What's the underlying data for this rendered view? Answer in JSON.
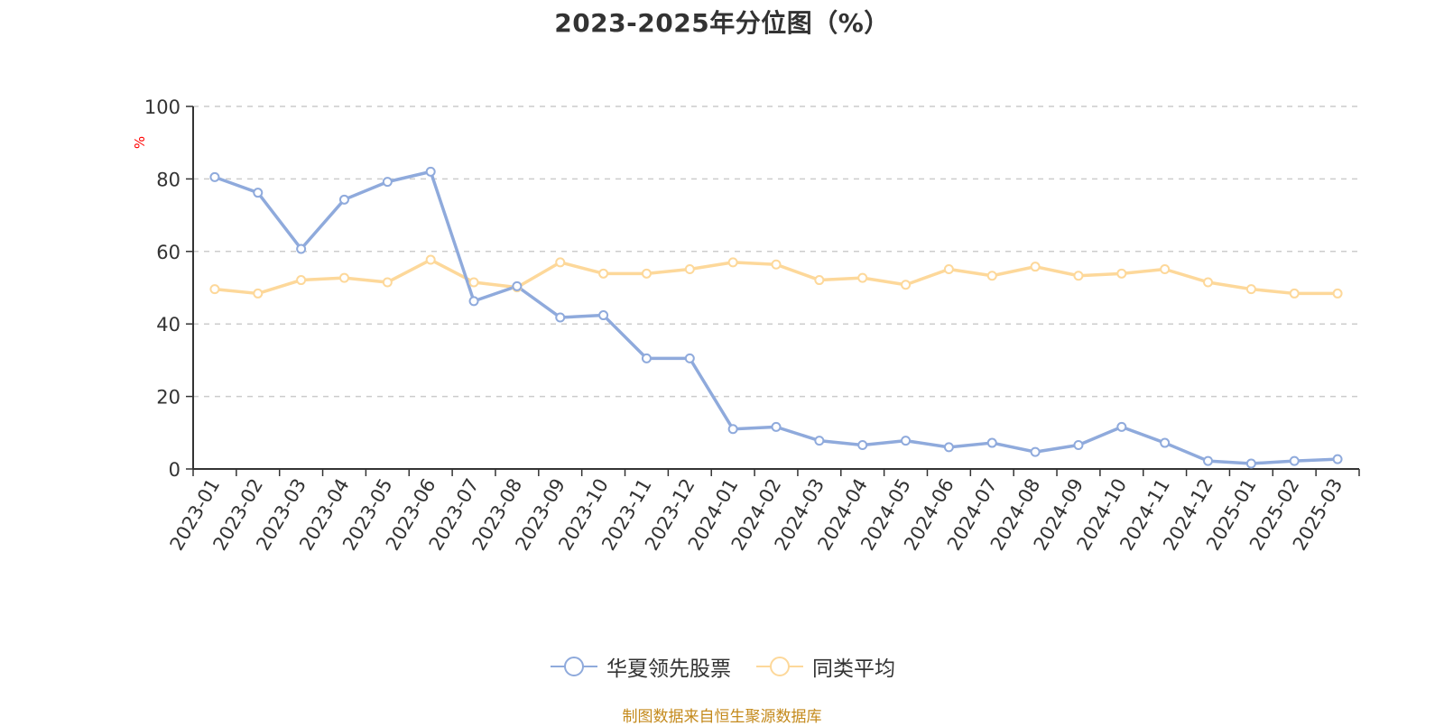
{
  "chart_data": {
    "type": "line",
    "title": "2023-2025年分位图（%）",
    "ylabel": "%",
    "xlabel": "",
    "ylim": [
      0,
      100
    ],
    "yticks": [
      0,
      20,
      40,
      60,
      80,
      100
    ],
    "grid": true,
    "legend_position": "bottom-center",
    "categories": [
      "2023-01",
      "2023-02",
      "2023-03",
      "2023-04",
      "2023-05",
      "2023-06",
      "2023-07",
      "2023-08",
      "2023-09",
      "2023-10",
      "2023-11",
      "2023-12",
      "2024-01",
      "2024-02",
      "2024-03",
      "2024-04",
      "2024-05",
      "2024-06",
      "2024-07",
      "2024-08",
      "2024-09",
      "2024-10",
      "2024-11",
      "2024-12",
      "2025-01",
      "2025-02",
      "2025-03"
    ],
    "series": [
      {
        "name": "华夏领先股票",
        "color": "#8faadc",
        "values": [
          80.5,
          76.2,
          60.7,
          74.3,
          79.2,
          82.0,
          46.3,
          50.4,
          41.8,
          42.4,
          30.5,
          30.5,
          11.0,
          11.6,
          7.8,
          6.6,
          7.8,
          6.0,
          7.2,
          4.7,
          6.6,
          11.6,
          7.2,
          2.2,
          1.5,
          2.2,
          2.7
        ]
      },
      {
        "name": "同类平均",
        "color": "#fdd89a",
        "values": [
          49.6,
          48.4,
          52.1,
          52.7,
          51.5,
          57.7,
          51.5,
          50.1,
          57.0,
          53.9,
          53.9,
          55.1,
          57.0,
          56.4,
          52.1,
          52.7,
          50.8,
          55.1,
          53.3,
          55.8,
          53.3,
          53.9,
          55.1,
          51.5,
          49.6,
          48.4,
          48.4
        ]
      }
    ],
    "source_note": "制图数据来自恒生聚源数据库"
  }
}
